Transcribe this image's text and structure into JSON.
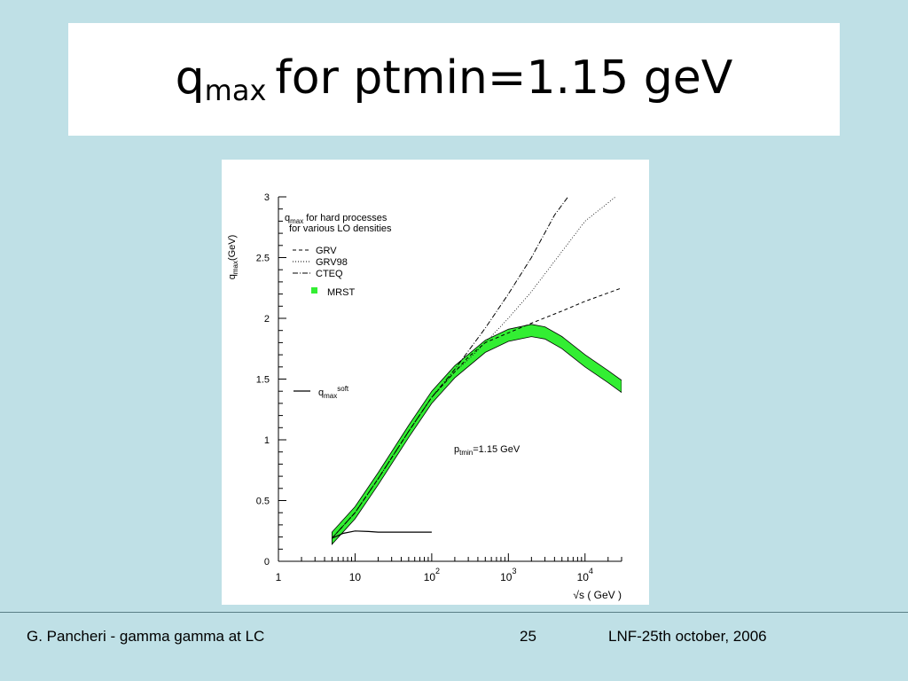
{
  "slide": {
    "title_main": "q",
    "title_sub": "max",
    "title_rest": "for ptmin=1.15 geV"
  },
  "footer": {
    "left": "G. Pancheri - gamma gamma  at  LC",
    "page": "25",
    "right": "LNF-25th october, 2006"
  },
  "chart_data": {
    "type": "line",
    "xscale": "log",
    "xlim": [
      1,
      30000
    ],
    "ylim": [
      0,
      3
    ],
    "yticks": [
      "0",
      "0.5",
      "1",
      "1.5",
      "2",
      "2.5",
      "3"
    ],
    "xticks": [
      {
        "base": "1",
        "exp": ""
      },
      {
        "base": "10",
        "exp": ""
      },
      {
        "base": "10",
        "exp": "2"
      },
      {
        "base": "10",
        "exp": "3"
      },
      {
        "base": "10",
        "exp": "4"
      }
    ],
    "ylabel": {
      "main": "q",
      "sub": "max",
      "rest": "(GeV)"
    },
    "xlabel": "√s ( GeV )",
    "annotation": {
      "main": "q",
      "sub": "max",
      "rest": " for hard processes",
      "line2": "for various LO densities"
    },
    "ptmin_label": {
      "main": "p",
      "sub": "tmin",
      "rest": "=1.15 GeV"
    },
    "soft_label": {
      "main": "q",
      "sub": "max",
      "sup": "soft"
    },
    "legend": [
      "GRV",
      "GRV98",
      "CTEQ",
      "MRST"
    ],
    "series": [
      {
        "name": "GRV",
        "style": "dashed",
        "x": [
          5,
          10,
          20,
          50,
          100,
          200,
          300,
          500,
          1000,
          2000,
          5000,
          10000,
          30000
        ],
        "y": [
          0.19,
          0.4,
          0.68,
          1.07,
          1.35,
          1.56,
          1.68,
          1.8,
          1.88,
          1.96,
          2.06,
          2.14,
          2.25
        ]
      },
      {
        "name": "GRV98",
        "style": "dotted",
        "x": [
          5,
          10,
          20,
          50,
          100,
          200,
          300,
          500,
          1000,
          2000,
          5000,
          10000,
          25000
        ],
        "y": [
          0.19,
          0.4,
          0.68,
          1.07,
          1.35,
          1.56,
          1.66,
          1.8,
          2.0,
          2.22,
          2.55,
          2.8,
          3.0
        ]
      },
      {
        "name": "CTEQ",
        "style": "dashdot",
        "x": [
          5,
          10,
          20,
          50,
          100,
          200,
          500,
          1000,
          2000,
          4000,
          6000
        ],
        "y": [
          0.19,
          0.4,
          0.68,
          1.07,
          1.35,
          1.58,
          1.92,
          2.2,
          2.5,
          2.85,
          3.0
        ]
      },
      {
        "name": "MRST",
        "style": "band",
        "x": [
          5,
          10,
          20,
          50,
          100,
          200,
          500,
          1000,
          2000,
          3000,
          5000,
          10000,
          20000,
          30000
        ],
        "y": [
          0.19,
          0.4,
          0.68,
          1.07,
          1.35,
          1.56,
          1.77,
          1.86,
          1.9,
          1.88,
          1.8,
          1.65,
          1.52,
          1.44
        ],
        "band_width": 0.05
      },
      {
        "name": "soft",
        "style": "solid",
        "x": [
          5,
          7,
          10,
          15,
          20,
          50,
          100
        ],
        "y": [
          0.19,
          0.23,
          0.25,
          0.245,
          0.24,
          0.24,
          0.24
        ]
      }
    ],
    "colors": {
      "band": "#33ee33",
      "line": "#000000"
    }
  }
}
